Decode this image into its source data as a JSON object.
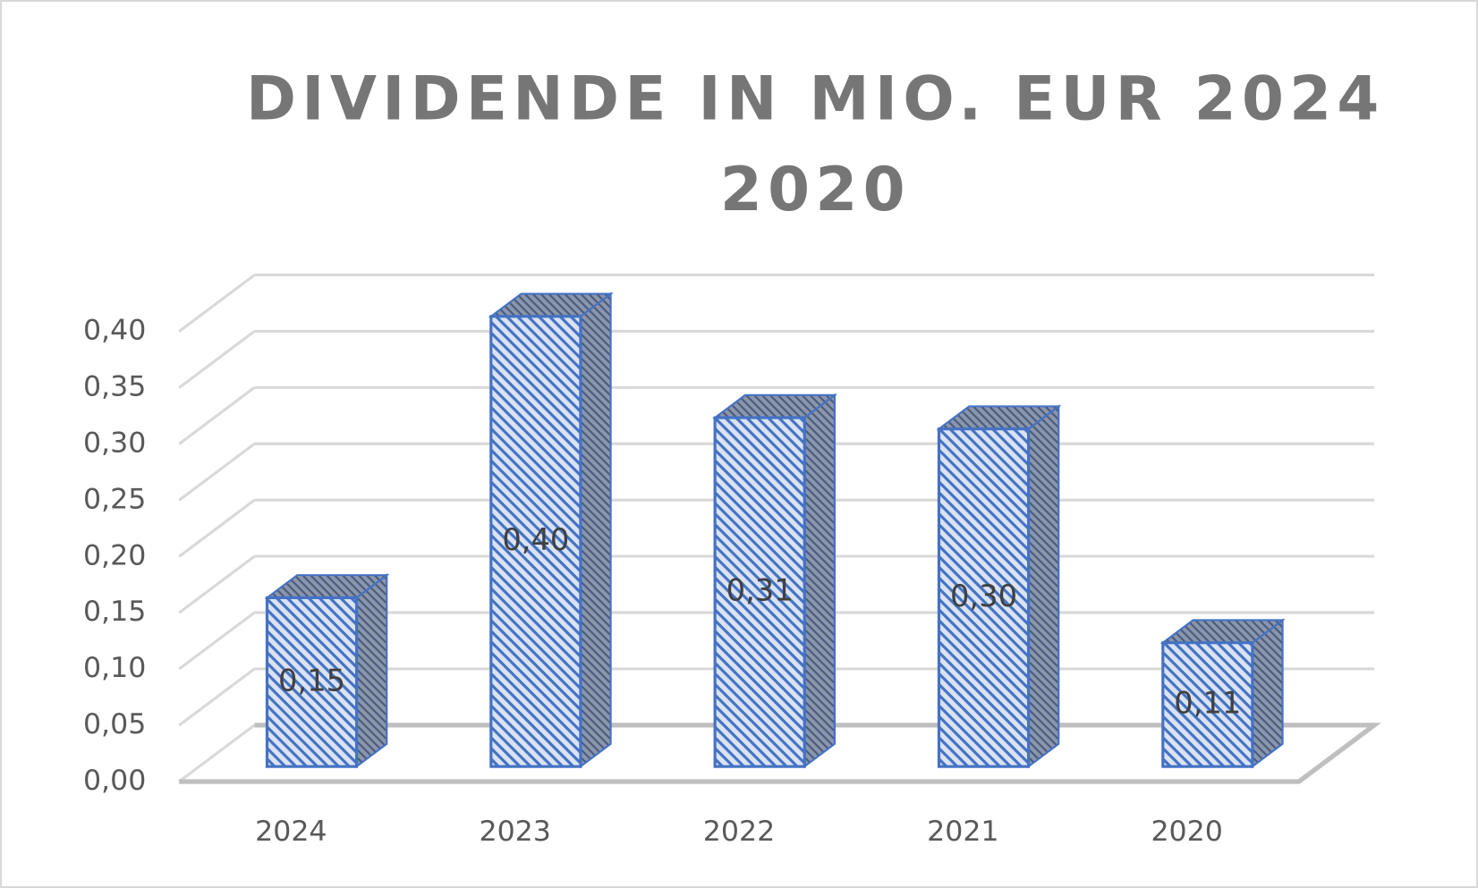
{
  "chart_data": {
    "type": "bar3d",
    "title": "DIVIDENDE IN MIO. EUR 2024 2020",
    "categories": [
      "2024",
      "2023",
      "2022",
      "2021",
      "2020"
    ],
    "values": [
      0.15,
      0.4,
      0.31,
      0.3,
      0.11
    ],
    "value_labels": [
      "0,15",
      "0,40",
      "0,31",
      "0,30",
      "0,11"
    ],
    "color": "#4472c4",
    "ylim": [
      0,
      0.4
    ],
    "yticks": [
      {
        "value": 0,
        "label": "0,00"
      },
      {
        "value": 0.05,
        "label": "0,05"
      },
      {
        "value": 0.1,
        "label": "0,10"
      },
      {
        "value": 0.15,
        "label": "0,15"
      },
      {
        "value": 0.2,
        "label": "0,20"
      },
      {
        "value": 0.25,
        "label": "0,25"
      },
      {
        "value": 0.3,
        "label": "0,30"
      },
      {
        "value": 0.35,
        "label": "0,35"
      },
      {
        "value": 0.4,
        "label": "0,40"
      }
    ],
    "grid": true
  }
}
